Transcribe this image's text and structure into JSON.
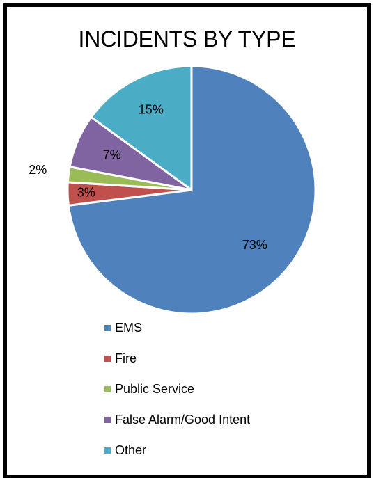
{
  "chart_data": {
    "type": "pie",
    "title": "INCIDENTS BY TYPE",
    "series": [
      {
        "values": [
          73,
          3,
          2,
          7,
          15
        ]
      }
    ],
    "categories": [
      "EMS",
      "Fire",
      "Public Service",
      "False Alarm/Good Intent",
      "Other"
    ],
    "slice_labels": [
      "73%",
      "3%",
      "2%",
      "7%",
      "15%"
    ],
    "colors": [
      "#4F81BD",
      "#C0504D",
      "#9BBB59",
      "#8064A2",
      "#4BACC6"
    ],
    "legend_position": "bottom",
    "start_angle_direction": "clockwise from top"
  }
}
